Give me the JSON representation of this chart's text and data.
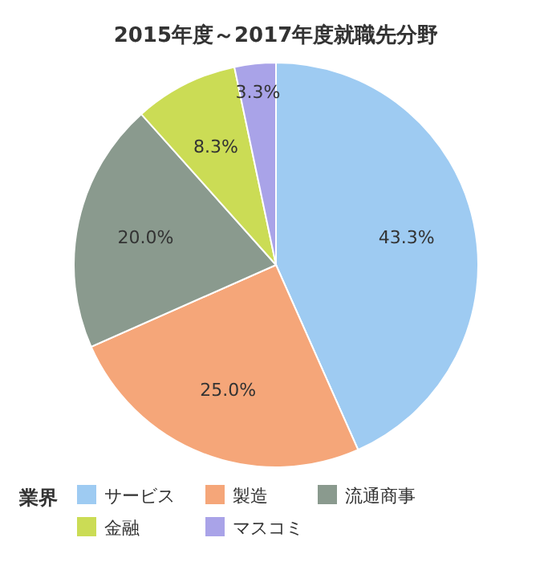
{
  "chart_data": {
    "type": "pie",
    "title": "2015年度～2017年度就職先分野",
    "legend_title": "業界",
    "categories": [
      "サービス",
      "製造",
      "流通商事",
      "金融",
      "マスコミ"
    ],
    "values": [
      43.3,
      25.0,
      20.0,
      8.3,
      3.3
    ],
    "value_labels": [
      "43.3%",
      "25.0%",
      "20.0%",
      "8.3%",
      "3.3%"
    ],
    "colors": [
      "#9ecbf2",
      "#f5a679",
      "#8a9a8e",
      "#cbdc55",
      "#a9a3e8"
    ],
    "legend": "bottom"
  }
}
